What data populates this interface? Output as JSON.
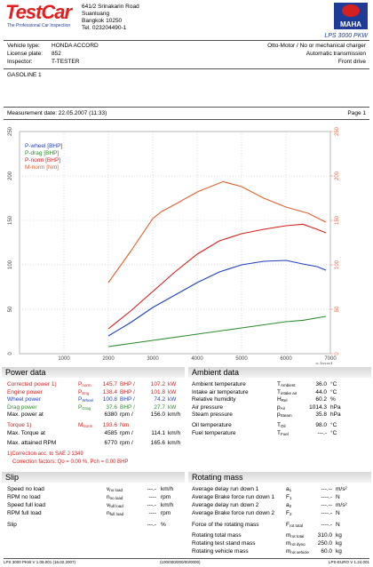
{
  "header": {
    "logo": "TestCar",
    "logo_tagline": "The Professional Car Inspection",
    "address": [
      "641/2 Srinakarin Road",
      "Suanluang",
      "Bangkok 10250",
      "Tel. 023204490-1"
    ],
    "maker_logo": "MAHA",
    "model": "LPS 3000 PKW"
  },
  "vehicle": {
    "rows": [
      [
        "Vehicle type:",
        "HONDA ACCORD"
      ],
      [
        "License plate:",
        "852"
      ],
      [
        "Inspector:",
        "T-TESTER"
      ]
    ],
    "right": [
      "Otto-Motor / No or mechanical charger",
      "Automatic transmission",
      "Front drive"
    ]
  },
  "fuel": "GASOLINE 1",
  "measurement": {
    "date": "Measurement date: 22.05.2007 (11:33)",
    "page": "Page 1"
  },
  "chart_data": {
    "type": "line",
    "xlabel": "n [rpm]",
    "xlim": [
      0,
      7000
    ],
    "xticks": [
      1000,
      2000,
      3000,
      4000,
      5000,
      6000,
      7000
    ],
    "ylim": [
      0,
      250
    ],
    "yticks": [
      0,
      50,
      100,
      150,
      200,
      250
    ],
    "y2lim": [
      0,
      250
    ],
    "y2ticks": [
      0,
      50,
      100,
      150,
      200,
      250
    ],
    "y2color": "#e07050",
    "grid": true,
    "series": [
      {
        "name": "P-wheel [BHP]",
        "color": "#1f3fc0",
        "x": [
          2000,
          2500,
          3000,
          3500,
          4000,
          4500,
          5000,
          5500,
          6000,
          6380,
          6700,
          6900
        ],
        "values": [
          20,
          35,
          52,
          66,
          80,
          92,
          100,
          104,
          105,
          101,
          98,
          94
        ]
      },
      {
        "name": "P-drag [BHP]",
        "color": "#2e8b2e",
        "x": [
          2000,
          3000,
          4000,
          5000,
          6000,
          6380,
          6900
        ],
        "values": [
          8,
          15,
          22,
          29,
          36,
          37.6,
          42
        ]
      },
      {
        "name": "P-norm [BHP]",
        "color": "#d42020",
        "x": [
          2000,
          2500,
          3000,
          3500,
          4000,
          4500,
          5000,
          5500,
          6000,
          6380,
          6700,
          6900
        ],
        "values": [
          28,
          48,
          70,
          92,
          112,
          127,
          135,
          140,
          144,
          145.7,
          140,
          136
        ]
      },
      {
        "name": "M-norm [Nm]",
        "color": "#e06030",
        "axis": "y2",
        "x": [
          2000,
          2500,
          3000,
          3200,
          3500,
          4000,
          4500,
          4585,
          5000,
          5500,
          6000,
          6500,
          6900
        ],
        "values": [
          80,
          115,
          152,
          160,
          168,
          182,
          192,
          193.6,
          188,
          175,
          165,
          158,
          148
        ]
      }
    ]
  },
  "power_data": {
    "title": "Power data",
    "rows": [
      {
        "label": "Corrected power 1)",
        "sym": "P",
        "sub": "norm",
        "v1": "145.7",
        "u1": "BHP /",
        "v2": "107.2",
        "u2": "kW",
        "color": "#d42020"
      },
      {
        "label": "Engine power",
        "sym": "P",
        "sub": "Eng",
        "v1": "138.4",
        "u1": "BHP /",
        "v2": "101.8",
        "u2": "kW",
        "color": "#d42020"
      },
      {
        "label": "Wheel power",
        "sym": "P",
        "sub": "Wheel",
        "v1": "100.8",
        "u1": "BHP /",
        "v2": "74.2",
        "u2": "kW",
        "color": "#1f3fc0"
      },
      {
        "label": "Drag power",
        "sym": "P",
        "sub": "Drag",
        "v1": "37.6",
        "u1": "BHP /",
        "v2": "27.7",
        "u2": "kW",
        "color": "#2e8b2e"
      },
      {
        "label": "Max. power at",
        "v1": "6380",
        "u1": "rpm /",
        "v2": "156.0",
        "u2": "km/h"
      },
      {
        "label": "Torque 1)",
        "sym": "M",
        "sub": "Norm",
        "v1": "193.6",
        "u1": "Nm",
        "color": "#d42020"
      },
      {
        "label": "Max. Torque at",
        "v1": "4585",
        "u1": "rpm /",
        "v2": "114.1",
        "u2": "km/h"
      },
      {
        "label": "Max. attained RPM",
        "v1": "6770",
        "u1": "rpm /",
        "v2": "165.6",
        "u2": "km/h"
      }
    ],
    "notes": [
      "1)Correction acc. to SAE J 1349",
      "Correction factors:  Qo =  0.00 %,  Pch =  0.00 BHP"
    ]
  },
  "ambient_data": {
    "title": "Ambient data",
    "rows": [
      {
        "label": "Ambient temperature",
        "sym": "T",
        "sub": "Ambient",
        "v1": "36.0",
        "u1": "°C"
      },
      {
        "label": "Intake air temperature",
        "sym": "T",
        "sub": "intake air",
        "v1": "44.0",
        "u1": "°C"
      },
      {
        "label": "Relative humidity",
        "sym": "H",
        "sub": "Rel",
        "v1": "60.2",
        "u1": "%"
      },
      {
        "label": "Air pressure",
        "sym": "p",
        "sub": "Air",
        "v1": "1014.3",
        "u1": "hPa"
      },
      {
        "label": "Steam pressure",
        "sym": "p",
        "sub": "Steam",
        "v1": "35.8",
        "u1": "hPa"
      },
      {
        "label": "Oil temperature",
        "sym": "T",
        "sub": "Oil",
        "v1": "98.0",
        "u1": "°C"
      },
      {
        "label": "Fuel temperature",
        "sym": "T",
        "sub": "Fuel",
        "v1": "---.-",
        "u1": "°C"
      }
    ]
  },
  "slip": {
    "title": "Slip",
    "rows": [
      {
        "label": "Speed no load",
        "sym": "v",
        "sub": "no load",
        "v1": "---.-",
        "u1": "km/h"
      },
      {
        "label": "RPM no load",
        "sym": "n",
        "sub": "no load",
        "v1": "----",
        "u1": "rpm"
      },
      {
        "label": "Speed full load",
        "sym": "v",
        "sub": "full load",
        "v1": "---.-",
        "u1": "km/h"
      },
      {
        "label": "RPM full load",
        "sym": "n",
        "sub": "full load",
        "v1": "----",
        "u1": "rpm"
      },
      {
        "label": "Slip",
        "v1": "---.-",
        "u1": "%"
      }
    ]
  },
  "rotating_mass": {
    "title": "Rotating mass",
    "rows": [
      {
        "label": "Average delay run down 1",
        "sym": "a",
        "sub": "1",
        "v1": "---.--",
        "u1": "m/s²"
      },
      {
        "label": "Average Brake force run down 1",
        "sym": "F",
        "sub": "1",
        "v1": "----.-",
        "u1": "N"
      },
      {
        "label": "Average delay run down 2",
        "sym": "a",
        "sub": "2",
        "v1": "---.--",
        "u1": "m/s²"
      },
      {
        "label": "Average Brake force run down 2",
        "sym": "F",
        "sub": "2",
        "v1": "----.-",
        "u1": "N"
      },
      {
        "label": "Force of the rotating mass",
        "sym": "F",
        "sub": "rot total",
        "v1": "----.-",
        "u1": "N"
      },
      {
        "label": "Rotating total mass",
        "sym": "m",
        "sub": "rot total",
        "v1": "310.0",
        "u1": "kg"
      },
      {
        "label": "Rotating test stand mass",
        "sym": "m",
        "sub": "rot dyno",
        "v1": "250.0",
        "u1": "kg"
      },
      {
        "label": "Rotating vehicle mass",
        "sym": "m",
        "sub": "rot vehicle",
        "v1": "60.0",
        "u1": "kg"
      }
    ]
  },
  "footer": [
    "LPS 3000 PKW V 1.09.001 (16.02.2007)",
    "(100/000/000/00/0000)",
    "LPS-EURO V 1.24.001"
  ]
}
